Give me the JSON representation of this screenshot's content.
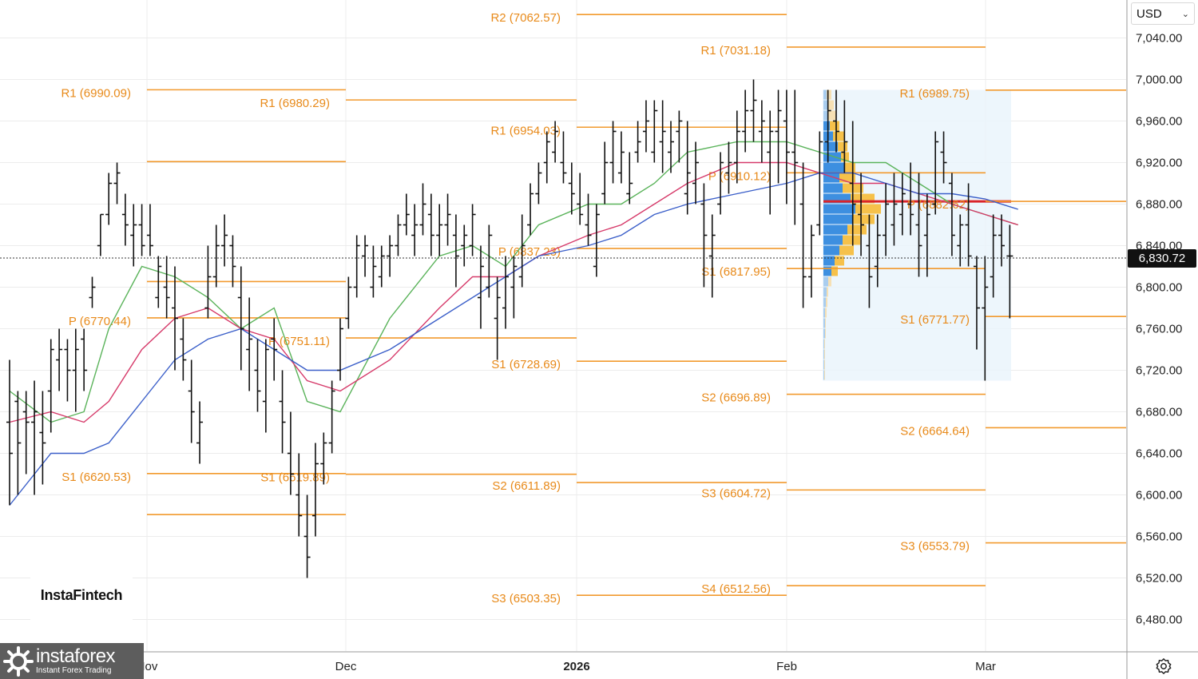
{
  "currency_selector": {
    "value": "USD"
  },
  "last_price_label": "6,830.72",
  "watermark": "InstaFintech",
  "brand": {
    "name": "instaforex",
    "tagline": "Instant Forex Trading"
  },
  "chart_data": {
    "type": "ohlc",
    "title": "",
    "xlabel": "",
    "ylabel": "",
    "ylim": [
      6450,
      7080
    ],
    "y_ticks": [
      "7,040.00",
      "7,000.00",
      "6,960.00",
      "6,920.00",
      "6,880.00",
      "6,840.00",
      "6,800.00",
      "6,760.00",
      "6,720.00",
      "6,680.00",
      "6,640.00",
      "6,600.00",
      "6,560.00",
      "6,520.00",
      "6,480.00"
    ],
    "x_ticks": [
      {
        "label": "Nov",
        "bold": false
      },
      {
        "label": "Dec",
        "bold": false
      },
      {
        "label": "2026",
        "bold": true
      },
      {
        "label": "Feb",
        "bold": false
      },
      {
        "label": "Mar",
        "bold": false
      }
    ],
    "grid": true,
    "last_price": 6830.72,
    "pivot_levels": [
      {
        "period": "Oct",
        "label": "R1 (6990.09)",
        "value": 6990.09
      },
      {
        "period": "Oct",
        "label": "",
        "value": 6920.9
      },
      {
        "period": "Oct",
        "label": "",
        "value": 6805.4
      },
      {
        "period": "Oct",
        "label": "P (6770.44)",
        "value": 6770.44
      },
      {
        "period": "Oct",
        "label": "S1 (6620.53)",
        "value": 6620.53
      },
      {
        "period": "Oct",
        "label": "",
        "value": 6581.0
      },
      {
        "period": "Nov",
        "label": "R1 (6980.29)",
        "value": 6980.29
      },
      {
        "period": "Nov",
        "label": "P (6751.11)",
        "value": 6751.11
      },
      {
        "period": "Nov",
        "label": "S1 (6619.89)",
        "value": 6619.89
      },
      {
        "period": "Dec",
        "label": "R2 (7062.57)",
        "value": 7062.57
      },
      {
        "period": "Dec",
        "label": "R1 (6954.03)",
        "value": 6954.03
      },
      {
        "period": "Dec",
        "label": "P (6837.23)",
        "value": 6837.23
      },
      {
        "period": "Dec",
        "label": "S1 (6728.69)",
        "value": 6728.69
      },
      {
        "period": "Dec",
        "label": "S2 (6611.89)",
        "value": 6611.89
      },
      {
        "period": "Dec",
        "label": "S3 (6503.35)",
        "value": 6503.35
      },
      {
        "period": "Jan",
        "label": "R1 (7031.18)",
        "value": 7031.18
      },
      {
        "period": "Jan",
        "label": "P (6910.12)",
        "value": 6910.12
      },
      {
        "period": "Jan",
        "label": "S1 (6817.95)",
        "value": 6817.95
      },
      {
        "period": "Jan",
        "label": "S2 (6696.89)",
        "value": 6696.89
      },
      {
        "period": "Jan",
        "label": "S3 (6604.72)",
        "value": 6604.72
      },
      {
        "period": "Jan",
        "label": "S4 (6512.56)",
        "value": 6512.56
      },
      {
        "period": "Feb",
        "label": "R1 (6989.75)",
        "value": 6989.75
      },
      {
        "period": "Feb",
        "label": "P (6882.62)",
        "value": 6882.62
      },
      {
        "period": "Feb",
        "label": "S1 (6771.77)",
        "value": 6771.77
      },
      {
        "period": "Feb",
        "label": "S2 (6664.64)",
        "value": 6664.64
      },
      {
        "period": "Feb",
        "label": "S3 (6553.79)",
        "value": 6553.79
      }
    ],
    "ohlc": [
      [
        6670,
        6730,
        6590,
        6640
      ],
      [
        6690,
        6700,
        6600,
        6650
      ],
      [
        6680,
        6700,
        6620,
        6670
      ],
      [
        6670,
        6710,
        6600,
        6680
      ],
      [
        6660,
        6700,
        6610,
        6650
      ],
      [
        6700,
        6750,
        6660,
        6740
      ],
      [
        6730,
        6760,
        6700,
        6740
      ],
      [
        6740,
        6750,
        6690,
        6720
      ],
      [
        6720,
        6760,
        6680,
        6740
      ],
      [
        6750,
        6760,
        6700,
        6720
      ],
      [
        6790,
        6810,
        6780,
        6800
      ],
      [
        6840,
        6870,
        6830,
        6870
      ],
      [
        6870,
        6910,
        6860,
        6900
      ],
      [
        6900,
        6920,
        6880,
        6910
      ],
      [
        6870,
        6890,
        6840,
        6860
      ],
      [
        6850,
        6880,
        6820,
        6860
      ],
      [
        6860,
        6880,
        6830,
        6840
      ],
      [
        6850,
        6880,
        6830,
        6840
      ],
      [
        6790,
        6830,
        6780,
        6820
      ],
      [
        6800,
        6830,
        6770,
        6790
      ],
      [
        6780,
        6820,
        6720,
        6770
      ],
      [
        6750,
        6770,
        6710,
        6730
      ],
      [
        6700,
        6730,
        6650,
        6680
      ],
      [
        6650,
        6690,
        6630,
        6670
      ],
      [
        6780,
        6840,
        6770,
        6810
      ],
      [
        6810,
        6860,
        6800,
        6840
      ],
      [
        6840,
        6870,
        6820,
        6850
      ],
      [
        6840,
        6850,
        6800,
        6820
      ],
      [
        6790,
        6820,
        6720,
        6760
      ],
      [
        6740,
        6790,
        6700,
        6750
      ],
      [
        6720,
        6750,
        6680,
        6700
      ],
      [
        6690,
        6750,
        6660,
        6740
      ],
      [
        6750,
        6770,
        6710,
        6740
      ],
      [
        6690,
        6720,
        6640,
        6670
      ],
      [
        6640,
        6680,
        6600,
        6620
      ],
      [
        6600,
        6640,
        6560,
        6580
      ],
      [
        6560,
        6600,
        6520,
        6540
      ],
      [
        6580,
        6650,
        6560,
        6630
      ],
      [
        6630,
        6660,
        6610,
        6650
      ],
      [
        6650,
        6710,
        6640,
        6700
      ],
      [
        6720,
        6770,
        6710,
        6760
      ],
      [
        6770,
        6810,
        6760,
        6800
      ],
      [
        6800,
        6850,
        6790,
        6840
      ],
      [
        6830,
        6850,
        6810,
        6840
      ],
      [
        6800,
        6840,
        6790,
        6820
      ],
      [
        6810,
        6840,
        6800,
        6830
      ],
      [
        6830,
        6850,
        6810,
        6840
      ],
      [
        6840,
        6870,
        6830,
        6860
      ],
      [
        6860,
        6890,
        6850,
        6870
      ],
      [
        6850,
        6880,
        6830,
        6860
      ],
      [
        6860,
        6900,
        6850,
        6880
      ],
      [
        6870,
        6890,
        6830,
        6850
      ],
      [
        6850,
        6880,
        6830,
        6860
      ],
      [
        6860,
        6890,
        6840,
        6870
      ],
      [
        6850,
        6870,
        6800,
        6830
      ],
      [
        6840,
        6860,
        6820,
        6850
      ],
      [
        6840,
        6880,
        6830,
        6870
      ],
      [
        6790,
        6840,
        6760,
        6820
      ],
      [
        6800,
        6860,
        6790,
        6850
      ],
      [
        6770,
        6810,
        6730,
        6790
      ],
      [
        6780,
        6830,
        6760,
        6810
      ],
      [
        6800,
        6830,
        6770,
        6820
      ],
      [
        6810,
        6870,
        6800,
        6840
      ],
      [
        6860,
        6900,
        6850,
        6890
      ],
      [
        6890,
        6920,
        6880,
        6910
      ],
      [
        6920,
        6950,
        6900,
        6940
      ],
      [
        6930,
        6960,
        6920,
        6950
      ],
      [
        6920,
        6950,
        6900,
        6910
      ],
      [
        6900,
        6920,
        6870,
        6890
      ],
      [
        6880,
        6910,
        6860,
        6870
      ],
      [
        6860,
        6890,
        6840,
        6850
      ],
      [
        6820,
        6880,
        6810,
        6870
      ],
      [
        6890,
        6940,
        6880,
        6920
      ],
      [
        6920,
        6960,
        6900,
        6950
      ],
      [
        6910,
        6950,
        6900,
        6930
      ],
      [
        6890,
        6930,
        6880,
        6900
      ],
      [
        6930,
        6960,
        6920,
        6940
      ],
      [
        6950,
        6980,
        6930,
        6960
      ],
      [
        6930,
        6980,
        6920,
        6970
      ],
      [
        6940,
        6980,
        6910,
        6950
      ],
      [
        6930,
        6960,
        6910,
        6940
      ],
      [
        6950,
        6970,
        6920,
        6960
      ],
      [
        6890,
        6960,
        6870,
        6910
      ],
      [
        6900,
        6940,
        6880,
        6920
      ],
      [
        6880,
        6900,
        6800,
        6850
      ],
      [
        6830,
        6870,
        6790,
        6850
      ],
      [
        6880,
        6930,
        6870,
        6920
      ],
      [
        6910,
        6940,
        6890,
        6920
      ],
      [
        6920,
        6970,
        6900,
        6950
      ],
      [
        6950,
        6990,
        6930,
        6970
      ],
      [
        6970,
        7000,
        6940,
        6980
      ],
      [
        6950,
        6980,
        6920,
        6960
      ],
      [
        6930,
        6970,
        6870,
        6950
      ],
      [
        6950,
        6990,
        6900,
        6970
      ],
      [
        6960,
        6990,
        6880,
        6930
      ],
      [
        6930,
        6990,
        6860,
        6920
      ],
      [
        6880,
        6920,
        6780,
        6810
      ],
      [
        6810,
        6860,
        6790,
        6850
      ],
      [
        6860,
        6950,
        6850,
        6940
      ],
      [
        6940,
        6990,
        6920,
        6970
      ],
      [
        6960,
        6990,
        6930,
        6950
      ],
      [
        6930,
        6980,
        6910,
        6940
      ],
      [
        6900,
        6960,
        6840,
        6880
      ],
      [
        6870,
        6910,
        6830,
        6860
      ],
      [
        6840,
        6870,
        6780,
        6810
      ],
      [
        6820,
        6870,
        6800,
        6850
      ],
      [
        6850,
        6900,
        6830,
        6880
      ],
      [
        6860,
        6910,
        6840,
        6880
      ],
      [
        6870,
        6910,
        6850,
        6890
      ],
      [
        6880,
        6920,
        6850,
        6870
      ],
      [
        6860,
        6910,
        6810,
        6840
      ],
      [
        6850,
        6890,
        6810,
        6870
      ],
      [
        6880,
        6950,
        6870,
        6940
      ],
      [
        6930,
        6950,
        6900,
        6920
      ],
      [
        6900,
        6910,
        6830,
        6850
      ],
      [
        6840,
        6870,
        6820,
        6860
      ],
      [
        6860,
        6900,
        6820,
        6830
      ],
      [
        6820,
        6830,
        6740,
        6780
      ],
      [
        6780,
        6830,
        6710,
        6800
      ],
      [
        6810,
        6870,
        6790,
        6850
      ],
      [
        6850,
        6870,
        6820,
        6840
      ],
      [
        6830,
        6860,
        6770,
        6830
      ]
    ],
    "ema_series": [
      {
        "color": "#5ab35a",
        "points": [
          [
            0,
            6700
          ],
          [
            5,
            6670
          ],
          [
            9,
            6680
          ],
          [
            12,
            6760
          ],
          [
            16,
            6820
          ],
          [
            20,
            6810
          ],
          [
            24,
            6790
          ],
          [
            28,
            6760
          ],
          [
            32,
            6780
          ],
          [
            36,
            6690
          ],
          [
            40,
            6680
          ],
          [
            46,
            6770
          ],
          [
            52,
            6830
          ],
          [
            56,
            6840
          ],
          [
            60,
            6820
          ],
          [
            64,
            6860
          ],
          [
            70,
            6880
          ],
          [
            74,
            6880
          ],
          [
            78,
            6900
          ],
          [
            82,
            6930
          ],
          [
            88,
            6940
          ],
          [
            94,
            6940
          ],
          [
            98,
            6930
          ],
          [
            102,
            6920
          ],
          [
            106,
            6920
          ],
          [
            110,
            6900
          ],
          [
            114,
            6880
          ],
          [
            118,
            6870
          ],
          [
            122,
            6860
          ]
        ]
      },
      {
        "color": "#d63a6a",
        "points": [
          [
            0,
            6670
          ],
          [
            5,
            6680
          ],
          [
            9,
            6670
          ],
          [
            12,
            6690
          ],
          [
            16,
            6740
          ],
          [
            20,
            6770
          ],
          [
            24,
            6780
          ],
          [
            28,
            6760
          ],
          [
            32,
            6750
          ],
          [
            36,
            6710
          ],
          [
            40,
            6700
          ],
          [
            46,
            6730
          ],
          [
            52,
            6780
          ],
          [
            56,
            6810
          ],
          [
            60,
            6810
          ],
          [
            64,
            6830
          ],
          [
            70,
            6850
          ],
          [
            74,
            6860
          ],
          [
            78,
            6880
          ],
          [
            82,
            6900
          ],
          [
            88,
            6920
          ],
          [
            94,
            6920
          ],
          [
            98,
            6910
          ],
          [
            102,
            6900
          ],
          [
            106,
            6900
          ],
          [
            110,
            6890
          ],
          [
            114,
            6880
          ],
          [
            118,
            6870
          ],
          [
            122,
            6860
          ]
        ]
      },
      {
        "color": "#3b5fc9",
        "points": [
          [
            0,
            6590
          ],
          [
            5,
            6640
          ],
          [
            9,
            6640
          ],
          [
            12,
            6650
          ],
          [
            16,
            6690
          ],
          [
            20,
            6730
          ],
          [
            24,
            6750
          ],
          [
            28,
            6760
          ],
          [
            32,
            6740
          ],
          [
            36,
            6720
          ],
          [
            40,
            6720
          ],
          [
            46,
            6740
          ],
          [
            52,
            6770
          ],
          [
            56,
            6790
          ],
          [
            60,
            6810
          ],
          [
            64,
            6830
          ],
          [
            70,
            6840
          ],
          [
            74,
            6850
          ],
          [
            78,
            6870
          ],
          [
            82,
            6880
          ],
          [
            88,
            6890
          ],
          [
            94,
            6900
          ],
          [
            98,
            6910
          ],
          [
            102,
            6910
          ],
          [
            106,
            6900
          ],
          [
            110,
            6890
          ],
          [
            114,
            6890
          ],
          [
            118,
            6885
          ],
          [
            122,
            6875
          ]
        ]
      }
    ],
    "volume_profile": {
      "price_range": [
        6710,
        6990
      ],
      "poc": 6882.62,
      "rows": [
        [
          6985,
          4,
          6
        ],
        [
          6975,
          5,
          8
        ],
        [
          6965,
          6,
          10
        ],
        [
          6955,
          8,
          12
        ],
        [
          6945,
          12,
          14
        ],
        [
          6935,
          18,
          12
        ],
        [
          6925,
          22,
          10
        ],
        [
          6915,
          26,
          14
        ],
        [
          6905,
          20,
          20
        ],
        [
          6895,
          24,
          26
        ],
        [
          6885,
          34,
          30
        ],
        [
          6875,
          40,
          32
        ],
        [
          6865,
          36,
          28
        ],
        [
          6855,
          30,
          24
        ],
        [
          6845,
          24,
          22
        ],
        [
          6835,
          20,
          18
        ],
        [
          6825,
          14,
          12
        ],
        [
          6815,
          10,
          8
        ],
        [
          6805,
          6,
          4
        ],
        [
          6795,
          4,
          2
        ],
        [
          6785,
          3,
          2
        ],
        [
          6775,
          2,
          2
        ],
        [
          6765,
          2,
          1
        ],
        [
          6755,
          2,
          1
        ],
        [
          6745,
          1,
          1
        ],
        [
          6735,
          1,
          1
        ],
        [
          6725,
          1,
          1
        ],
        [
          6715,
          1,
          1
        ]
      ]
    }
  }
}
